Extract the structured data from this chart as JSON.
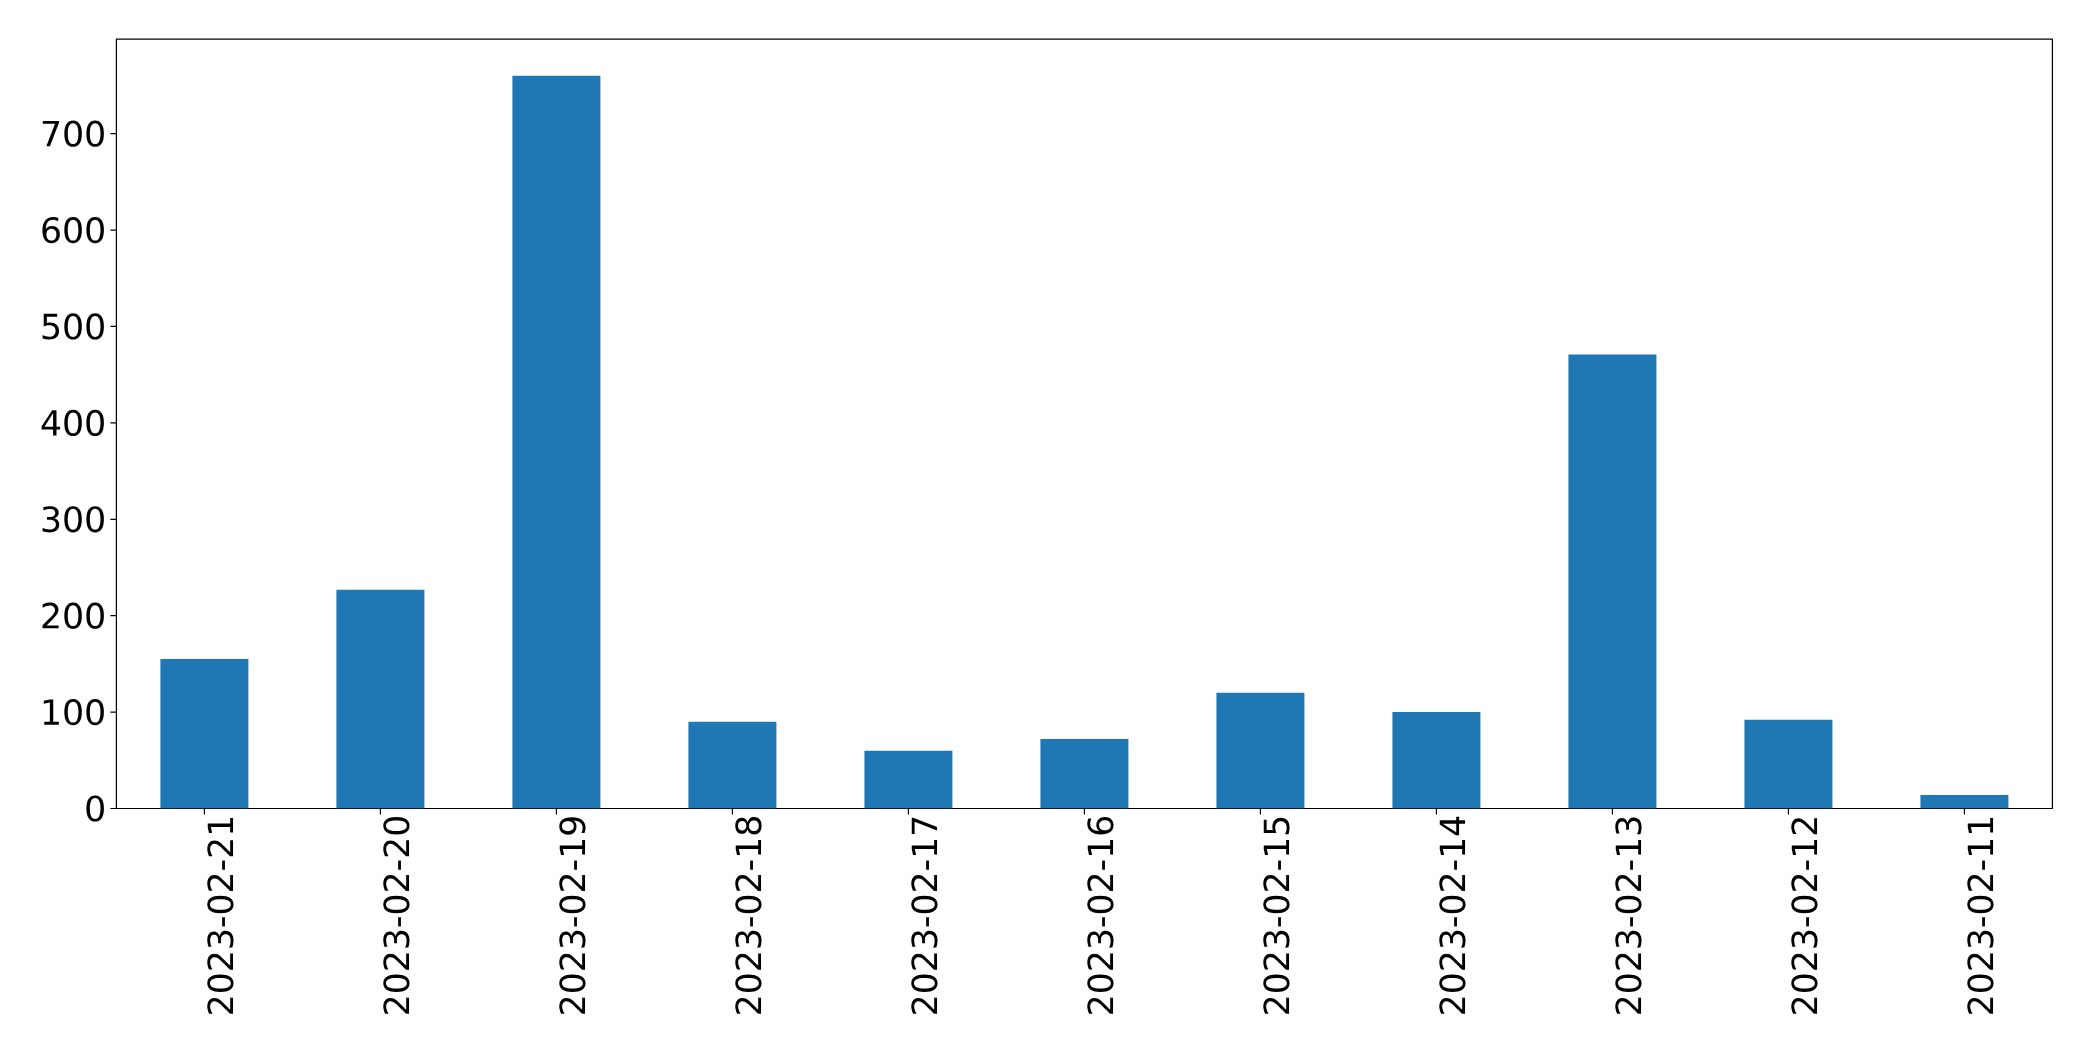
{
  "chart_data": {
    "type": "bar",
    "categories": [
      "2023-02-21",
      "2023-02-20",
      "2023-02-19",
      "2023-02-18",
      "2023-02-17",
      "2023-02-16",
      "2023-02-15",
      "2023-02-14",
      "2023-02-13",
      "2023-02-12",
      "2023-02-11"
    ],
    "values": [
      155,
      227,
      760,
      90,
      60,
      72,
      120,
      100,
      471,
      92,
      14
    ],
    "color": "#1f77b4",
    "ylim": [
      0,
      798
    ],
    "yticks": [
      0,
      100,
      200,
      300,
      400,
      500,
      600,
      700
    ]
  }
}
